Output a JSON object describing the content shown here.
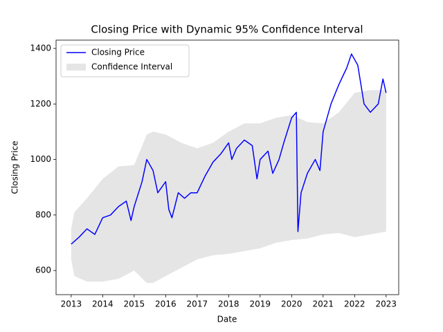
{
  "chart_data": {
    "type": "line",
    "title": "Closing Price with Dynamic 95% Confidence Interval",
    "xlabel": "Date",
    "ylabel": "Closing Price",
    "xlim": [
      2012.52,
      2023.4
    ],
    "ylim": [
      513,
      1430
    ],
    "xticks": [
      2013,
      2014,
      2015,
      2016,
      2017,
      2018,
      2019,
      2020,
      2021,
      2022,
      2023
    ],
    "yticks": [
      600,
      800,
      1000,
      1200,
      1400
    ],
    "legend": "upper left",
    "series": [
      {
        "name": "Closing Price",
        "color": "#0000ff",
        "x": [
          2013.0,
          2013.25,
          2013.5,
          2013.75,
          2014.0,
          2014.25,
          2014.5,
          2014.75,
          2014.9,
          2015.0,
          2015.25,
          2015.4,
          2015.6,
          2015.75,
          2016.0,
          2016.1,
          2016.2,
          2016.4,
          2016.6,
          2016.8,
          2017.0,
          2017.25,
          2017.5,
          2017.75,
          2018.0,
          2018.1,
          2018.25,
          2018.5,
          2018.75,
          2018.9,
          2019.0,
          2019.25,
          2019.4,
          2019.6,
          2019.75,
          2020.0,
          2020.15,
          2020.2,
          2020.3,
          2020.5,
          2020.75,
          2020.9,
          2021.0,
          2021.25,
          2021.5,
          2021.75,
          2021.9,
          2022.1,
          2022.3,
          2022.5,
          2022.75,
          2022.9,
          2023.0
        ],
        "values": [
          695,
          720,
          750,
          730,
          790,
          800,
          830,
          850,
          780,
          830,
          920,
          1000,
          960,
          880,
          920,
          820,
          790,
          880,
          860,
          880,
          880,
          940,
          990,
          1020,
          1060,
          1000,
          1040,
          1070,
          1050,
          930,
          1000,
          1030,
          950,
          1000,
          1060,
          1150,
          1170,
          740,
          880,
          950,
          1000,
          960,
          1100,
          1200,
          1270,
          1330,
          1380,
          1340,
          1200,
          1170,
          1200,
          1290,
          1240
        ]
      }
    ],
    "band": {
      "name": "Confidence Interval",
      "color": "#d3d3d3",
      "x": [
        2013.0,
        2013.1,
        2013.5,
        2014.0,
        2014.5,
        2015.0,
        2015.4,
        2015.6,
        2016.0,
        2016.5,
        2017.0,
        2017.5,
        2018.0,
        2018.5,
        2019.0,
        2019.5,
        2020.0,
        2020.5,
        2021.0,
        2021.5,
        2022.0,
        2022.5,
        2023.0
      ],
      "lower": [
        640,
        580,
        560,
        560,
        570,
        600,
        555,
        555,
        580,
        610,
        640,
        655,
        660,
        670,
        680,
        700,
        710,
        715,
        730,
        735,
        720,
        730,
        740
      ],
      "upper": [
        750,
        810,
        860,
        930,
        975,
        980,
        1090,
        1100,
        1090,
        1060,
        1040,
        1060,
        1100,
        1130,
        1130,
        1150,
        1160,
        1135,
        1130,
        1170,
        1240,
        1250,
        1250
      ]
    }
  }
}
